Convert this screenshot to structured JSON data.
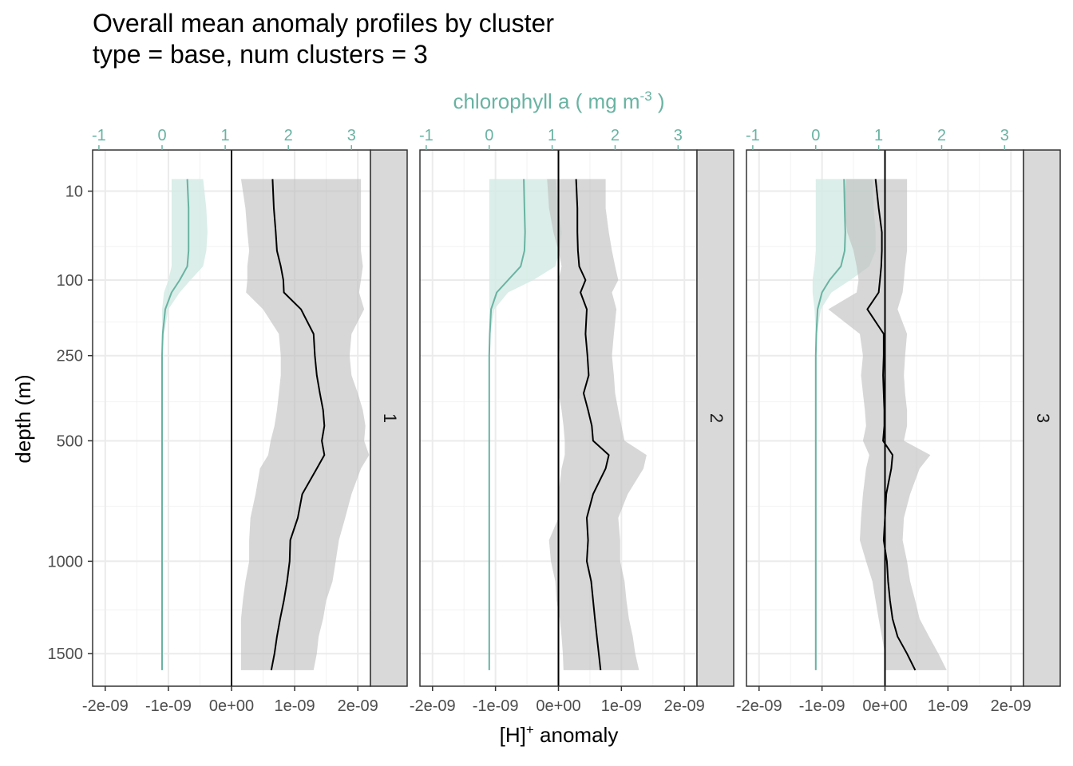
{
  "title": {
    "line1": "Overall mean anomaly profiles by cluster",
    "line2": "type = base, num clusters = 3"
  },
  "chart_data": {
    "type": "line",
    "facet_by": "cluster",
    "panels": [
      "1",
      "2",
      "3"
    ],
    "x_label": "[H]",
    "x_label_sup": "+",
    "x_label_suffix": " anomaly",
    "x_top_label_prefix": "chlorophyll a ( mg m",
    "x_top_label_sup": "-3",
    "x_top_label_suffix": " )",
    "y_label": "depth (m)",
    "x_ticks": [
      "-2e-09",
      "-1e-09",
      "0e+00",
      "1e-09",
      "2e-09"
    ],
    "x_tick_values": [
      -2e-09,
      -1e-09,
      0,
      1e-09,
      2e-09
    ],
    "x_range": [
      -2.2e-09,
      2.2e-09
    ],
    "x_top_ticks": [
      "-1",
      "0",
      "1",
      "2",
      "3"
    ],
    "x_top_tick_values": [
      -1,
      0,
      1,
      2,
      3
    ],
    "x_top_range": [
      -1.1,
      3.3
    ],
    "y_ticks": [
      "10",
      "100",
      "250",
      "500",
      "1000",
      "1500"
    ],
    "y_tick_values": [
      10,
      100,
      250,
      500,
      1000,
      1500
    ],
    "y_scale": "reversed sqrt",
    "y_range": [
      0,
      1700
    ],
    "colors": {
      "h_line": "#000000",
      "h_ribbon": "#bdbdbd",
      "chl_line": "#69b3a2",
      "chl_ribbon": "#d5ebe5",
      "strip_fill": "#d9d9d9"
    },
    "series": [
      {
        "panel": "1",
        "depth": [
          5,
          20,
          40,
          60,
          80,
          100,
          120,
          150,
          200,
          250,
          300,
          350,
          400,
          450,
          500,
          550,
          600,
          700,
          800,
          900,
          1000,
          1100,
          1200,
          1300,
          1400,
          1500,
          1600
        ],
        "h_mean": [
          6.5e-10,
          6.7e-10,
          7e-10,
          7.2e-10,
          7.8e-10,
          8.2e-10,
          8.3e-10,
          1.1e-09,
          1.3e-09,
          1.32e-09,
          1.35e-09,
          1.4e-09,
          1.45e-09,
          1.47e-09,
          1.43e-09,
          1.47e-09,
          1.35e-09,
          1.12e-09,
          1.05e-09,
          9.3e-10,
          9.2e-10,
          8.8e-10,
          8.3e-10,
          7.7e-10,
          7.2e-10,
          6.8e-10,
          6.3e-10
        ],
        "h_low": [
          1.5e-10,
          2.2e-10,
          2.5e-10,
          2.8e-10,
          2.5e-10,
          2.5e-10,
          2.3e-10,
          5e-10,
          7.5e-10,
          7.8e-10,
          7.8e-10,
          7.5e-10,
          7.2e-10,
          6.8e-10,
          6.2e-10,
          5.8e-10,
          4.5e-10,
          3.8e-10,
          3e-10,
          2.8e-10,
          2.8e-10,
          2.2e-10,
          1.8e-10,
          1.5e-10,
          1.5e-10,
          1.5e-10,
          1.5e-10
        ],
        "h_high": [
          2.05e-09,
          2.05e-09,
          2.05e-09,
          2.05e-09,
          2.08e-09,
          2.05e-09,
          2.02e-09,
          2.1e-09,
          1.9e-09,
          1.87e-09,
          1.9e-09,
          2e-09,
          2.08e-09,
          2.12e-09,
          2.1e-09,
          2.18e-09,
          2.05e-09,
          1.9e-09,
          1.8e-09,
          1.7e-09,
          1.65e-09,
          1.6e-09,
          1.5e-09,
          1.45e-09,
          1.38e-09,
          1.35e-09,
          1.3e-09
        ],
        "chl_mean": [
          0.4,
          0.42,
          0.42,
          0.42,
          0.4,
          0.28,
          0.15,
          0.05,
          0.01,
          0.0,
          0.0,
          0.0,
          0.0,
          0.0,
          0.0,
          0.0,
          0.0,
          0.0,
          0.0,
          0.0,
          0.0,
          0.0,
          0.0,
          0.0,
          0.0,
          0.0,
          0.0
        ],
        "chl_low": [
          0.15,
          0.15,
          0.15,
          0.15,
          0.15,
          0.1,
          0.03,
          0.0,
          0.0,
          0.0,
          0.0,
          0.0,
          0.0,
          0.0,
          0.0,
          0.0,
          0.0,
          0.0,
          0.0,
          0.0,
          0.0,
          0.0,
          0.0,
          0.0,
          0.0,
          0.0,
          0.0
        ],
        "chl_high": [
          0.65,
          0.7,
          0.72,
          0.7,
          0.65,
          0.45,
          0.28,
          0.1,
          0.03,
          0.0,
          0.0,
          0.0,
          0.0,
          0.0,
          0.0,
          0.0,
          0.0,
          0.0,
          0.0,
          0.0,
          0.0,
          0.0,
          0.0,
          0.0,
          0.0,
          0.0,
          0.0
        ]
      },
      {
        "panel": "2",
        "depth": [
          5,
          20,
          40,
          60,
          80,
          100,
          120,
          150,
          200,
          250,
          300,
          350,
          400,
          450,
          500,
          550,
          600,
          700,
          800,
          900,
          1000,
          1100,
          1200,
          1300,
          1400,
          1500,
          1600
        ],
        "h_mean": [
          2.8e-10,
          3e-10,
          3e-10,
          3.1e-10,
          3.3e-10,
          4.3e-10,
          3.5e-10,
          4.5e-10,
          4.3e-10,
          4.6e-10,
          4.8e-10,
          4e-10,
          4.7e-10,
          5.3e-10,
          5.5e-10,
          8e-10,
          7.5e-10,
          5.5e-10,
          4.5e-10,
          4.7e-10,
          4.5e-10,
          5.2e-10,
          5.5e-10,
          5.8e-10,
          6.1e-10,
          6.4e-10,
          6.7e-10
        ],
        "h_low": [
          -1.8e-10,
          -1.5e-10,
          -8e-11,
          0.0,
          5e-11,
          0.0,
          0.0,
          0.0,
          0.0,
          2e-11,
          0.0,
          0.0,
          5e-11,
          8e-11,
          1e-10,
          1e-10,
          5e-11,
          0.0,
          0.0,
          -1.5e-10,
          -1.2e-10,
          -5e-11,
          -3e-11,
          2e-11,
          5e-11,
          7e-11,
          8e-11
        ],
        "h_high": [
          7.5e-10,
          7.5e-10,
          8e-10,
          8.5e-10,
          9e-10,
          9.5e-10,
          8.5e-10,
          9.2e-10,
          8.8e-10,
          8.5e-10,
          8.8e-10,
          9e-10,
          9.5e-10,
          1e-09,
          1.05e-09,
          1.4e-09,
          1.35e-09,
          1.1e-09,
          9.5e-10,
          9.8e-10,
          9.8e-10,
          1.05e-09,
          1.08e-09,
          1.12e-09,
          1.18e-09,
          1.22e-09,
          1.28e-09
        ],
        "chl_mean": [
          0.55,
          0.56,
          0.57,
          0.56,
          0.5,
          0.3,
          0.12,
          0.03,
          0.01,
          0.0,
          0.0,
          0.0,
          0.0,
          0.0,
          0.0,
          0.0,
          0.0,
          0.0,
          0.0,
          0.0,
          0.0,
          0.0,
          0.0,
          0.0,
          0.0,
          0.0,
          0.0
        ],
        "chl_low": [
          0.0,
          0.0,
          0.0,
          0.0,
          0.0,
          0.0,
          0.0,
          0.0,
          0.0,
          0.0,
          0.0,
          0.0,
          0.0,
          0.0,
          0.0,
          0.0,
          0.0,
          0.0,
          0.0,
          0.0,
          0.0,
          0.0,
          0.0,
          0.0,
          0.0,
          0.0,
          0.0
        ],
        "chl_high": [
          1.05,
          1.1,
          1.15,
          1.12,
          1.05,
          0.7,
          0.3,
          0.08,
          0.02,
          0.0,
          0.0,
          0.0,
          0.0,
          0.0,
          0.0,
          0.0,
          0.0,
          0.0,
          0.0,
          0.0,
          0.0,
          0.0,
          0.0,
          0.0,
          0.0,
          0.0,
          0.0
        ]
      },
      {
        "panel": "3",
        "depth": [
          5,
          20,
          40,
          60,
          80,
          100,
          120,
          150,
          200,
          250,
          300,
          350,
          400,
          450,
          500,
          550,
          600,
          700,
          800,
          900,
          1000,
          1100,
          1200,
          1300,
          1400,
          1500,
          1600
        ],
        "h_mean": [
          -1.5e-10,
          -1e-10,
          -5e-11,
          -5e-11,
          -6e-11,
          -8e-11,
          -1e-10,
          -2.8e-10,
          -2e-11,
          -2e-11,
          -3e-11,
          -2e-11,
          -1e-11,
          -1e-11,
          -3e-11,
          1.2e-10,
          1e-10,
          2e-11,
          0.0,
          -2e-11,
          3e-11,
          5e-11,
          8e-11,
          1.2e-10,
          2e-10,
          3.5e-10,
          4.8e-10
        ],
        "h_low": [
          -6.2e-10,
          -6.5e-10,
          -6e-10,
          -5e-10,
          -4.5e-10,
          -4.2e-10,
          -4.5e-10,
          -9e-10,
          -4e-10,
          -3.5e-10,
          -3.8e-10,
          -3.5e-10,
          -3.2e-10,
          -3e-10,
          -3.5e-10,
          -2.5e-10,
          -3e-10,
          -3.5e-10,
          -3.8e-10,
          -4e-10,
          -3e-10,
          -2e-10,
          -1.5e-10,
          -1e-10,
          -5e-11,
          0.0,
          0.0
        ],
        "h_high": [
          3.5e-10,
          3.5e-10,
          3.5e-10,
          3.5e-10,
          3.2e-10,
          3e-10,
          2.8e-10,
          2e-10,
          3.5e-10,
          3.2e-10,
          3e-10,
          3.2e-10,
          3.5e-10,
          3.5e-10,
          3e-10,
          7.2e-10,
          5.5e-10,
          4e-10,
          3e-10,
          2.8e-10,
          3.5e-10,
          4e-10,
          4.8e-10,
          5.5e-10,
          7e-10,
          8.5e-10,
          9.8e-10
        ],
        "chl_mean": [
          0.45,
          0.46,
          0.47,
          0.46,
          0.4,
          0.22,
          0.1,
          0.03,
          0.01,
          0.0,
          0.0,
          0.0,
          0.0,
          0.0,
          0.0,
          0.0,
          0.0,
          0.0,
          0.0,
          0.0,
          0.0,
          0.0,
          0.0,
          0.0,
          0.0,
          0.0,
          0.0
        ],
        "chl_low": [
          0.0,
          0.0,
          0.0,
          0.0,
          -0.02,
          -0.05,
          -0.05,
          -0.02,
          0.0,
          0.0,
          0.0,
          0.0,
          0.0,
          0.0,
          0.0,
          0.0,
          0.0,
          0.0,
          0.0,
          0.0,
          0.0,
          0.0,
          0.0,
          0.0,
          0.0,
          0.0,
          0.0
        ],
        "chl_high": [
          0.9,
          0.92,
          0.95,
          0.95,
          0.85,
          0.55,
          0.25,
          0.08,
          0.02,
          0.0,
          0.0,
          0.0,
          0.0,
          0.0,
          0.0,
          0.0,
          0.0,
          0.0,
          0.0,
          0.0,
          0.0,
          0.0,
          0.0,
          0.0,
          0.0,
          0.0,
          0.0
        ]
      }
    ]
  }
}
